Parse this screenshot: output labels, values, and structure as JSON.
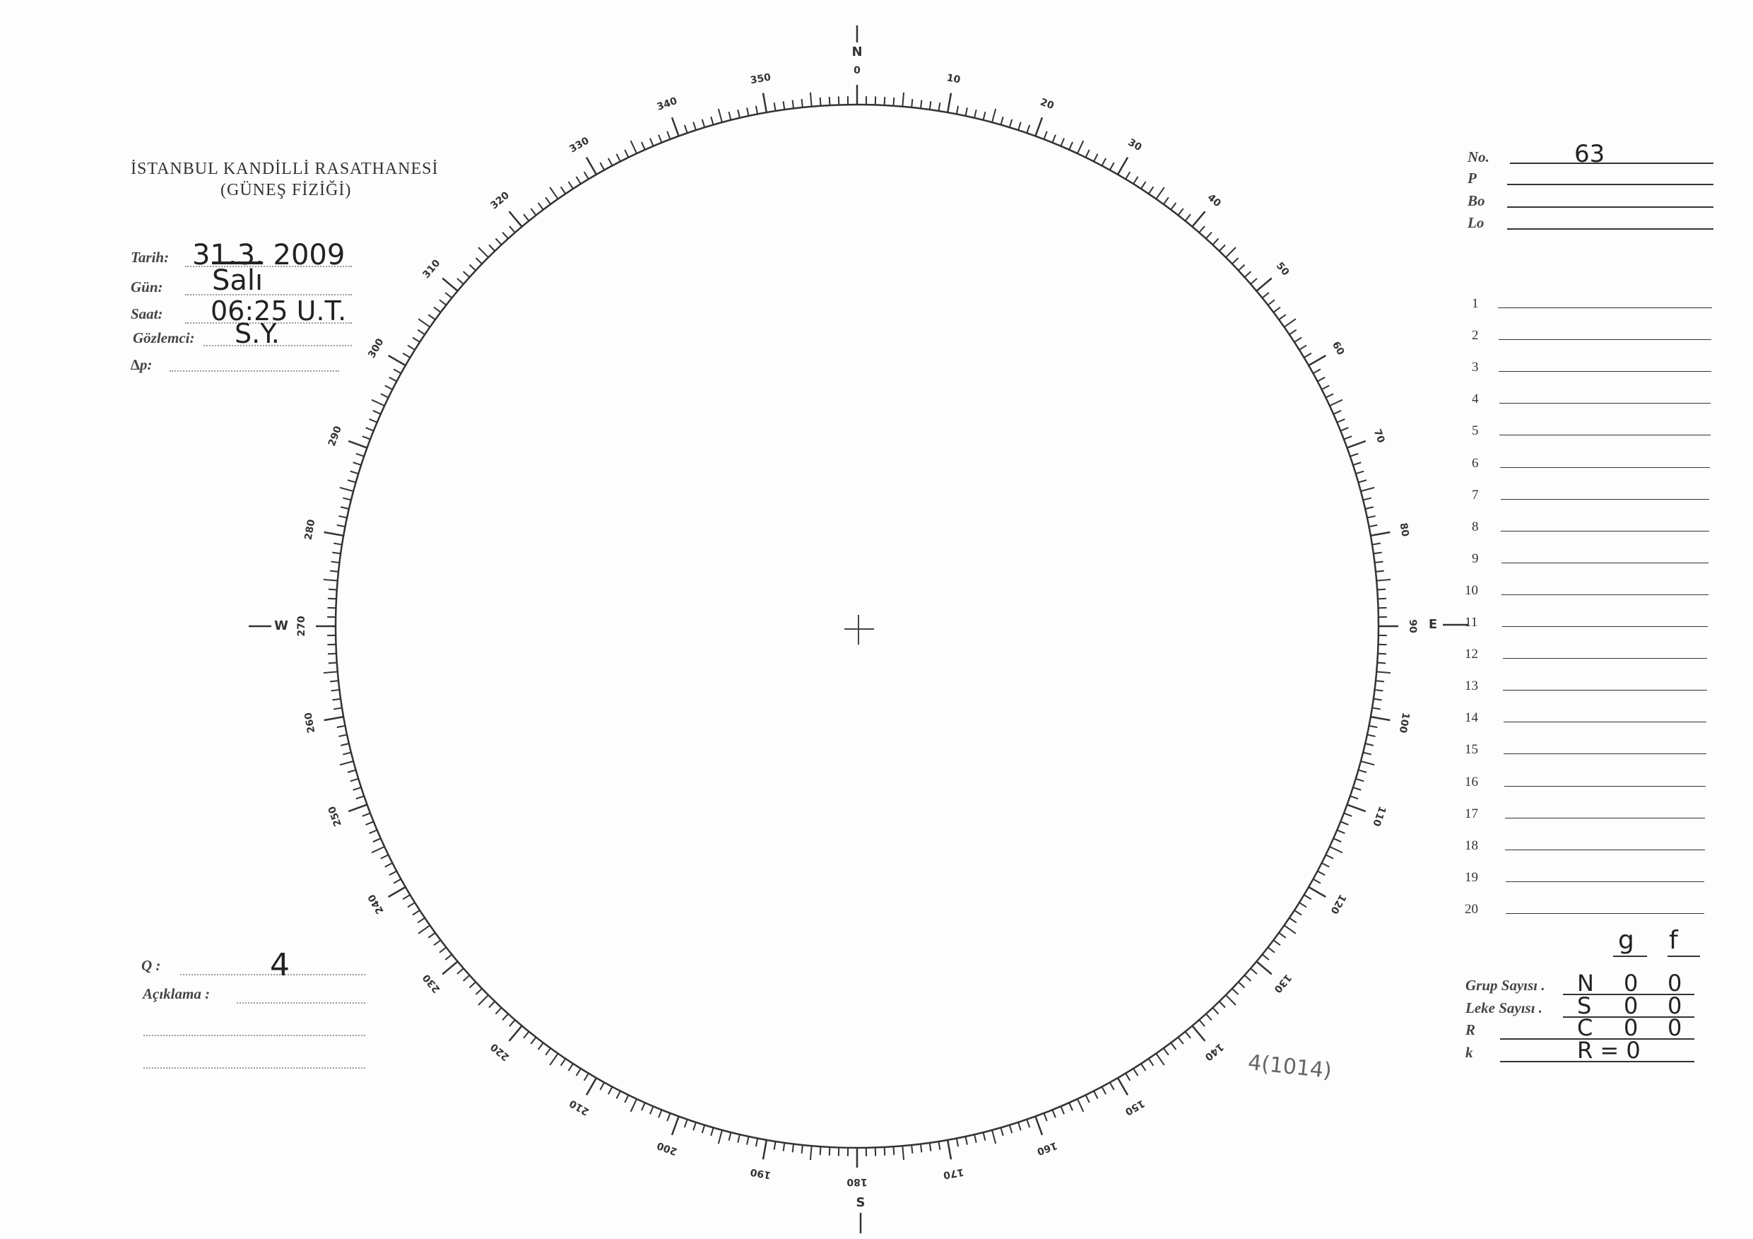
{
  "header": {
    "institution": "İSTANBUL KANDİLLİ RASATHANESİ",
    "department": "(GÜNEŞ FİZİĞİ)"
  },
  "observation": {
    "date": {
      "label": "Tarih:",
      "value": "31.3. 2009"
    },
    "day": {
      "label": "Gün:",
      "value": "Salı"
    },
    "time": {
      "label": "Saat:",
      "value": "06:25 U.T."
    },
    "observer": {
      "label": "Gözlemci:",
      "value": "S.Y."
    },
    "delta_p": {
      "label": "∆p:",
      "value": ""
    }
  },
  "quality": {
    "label": "Q :",
    "value": "4"
  },
  "notes": {
    "label": "Açıklama :",
    "value": ""
  },
  "solar_params": {
    "no": {
      "label": "No.",
      "value": "63"
    },
    "p": {
      "label": "P",
      "value": ""
    },
    "bo": {
      "label": "Bo",
      "value": ""
    },
    "lo": {
      "label": "Lo",
      "value": ""
    }
  },
  "group_rows": [
    "1",
    "2",
    "3",
    "4",
    "5",
    "6",
    "7",
    "8",
    "9",
    "10",
    "11",
    "12",
    "13",
    "14",
    "15",
    "16",
    "17",
    "18",
    "19",
    "20"
  ],
  "counts": {
    "col_g": "g",
    "col_f": "f",
    "rows": [
      {
        "label": "Grup Sayısı .",
        "hem": "N",
        "g": "0",
        "f": "0"
      },
      {
        "label": "Leke Sayısı .",
        "hem": "S",
        "g": "0",
        "f": "0"
      },
      {
        "label": "R",
        "hem": "C",
        "g": "0",
        "f": "0"
      },
      {
        "label": "k",
        "hem": "R = 0",
        "g": "",
        "f": ""
      }
    ]
  },
  "annotation": "4(1014)",
  "disk": {
    "cardinals": {
      "north": "N",
      "east": "E",
      "south": "S",
      "west": "W"
    },
    "scale_labels": [
      "0",
      "10",
      "20",
      "30",
      "40",
      "50",
      "60",
      "70",
      "80",
      "90",
      "100",
      "110",
      "120",
      "130",
      "140",
      "150",
      "160",
      "170",
      "180",
      "190",
      "200",
      "210",
      "220",
      "230",
      "240",
      "250",
      "260",
      "270",
      "280",
      "290",
      "300",
      "310",
      "320",
      "330",
      "340",
      "350"
    ]
  }
}
